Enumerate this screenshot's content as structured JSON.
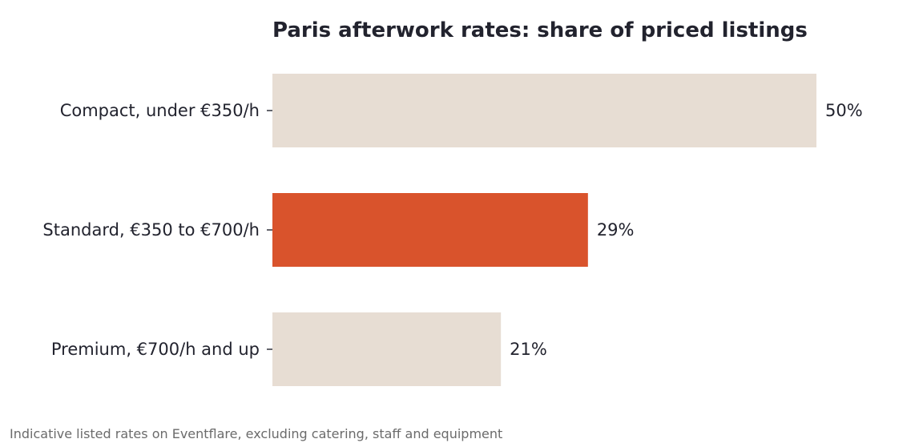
{
  "chart_data": {
    "type": "bar",
    "orientation": "horizontal",
    "title": "Paris afterwork rates: share of priced listings",
    "categories": [
      "Compact, under €350/h",
      "Standard, €350 to €700/h",
      "Premium, €700/h and up"
    ],
    "values": [
      50,
      29,
      21
    ],
    "value_labels": [
      "50%",
      "29%",
      "21%"
    ],
    "unit": "%",
    "xlim": [
      0,
      50
    ],
    "grid": false,
    "legend": "none",
    "highlight_index": 1,
    "colors": {
      "bar_default": "#e7ddd3",
      "bar_highlight": "#d9532c",
      "text": "#22232e",
      "note": "#6b6b6b"
    }
  },
  "footnote": "Indicative listed rates on Eventflare, excluding catering, staff and equipment"
}
